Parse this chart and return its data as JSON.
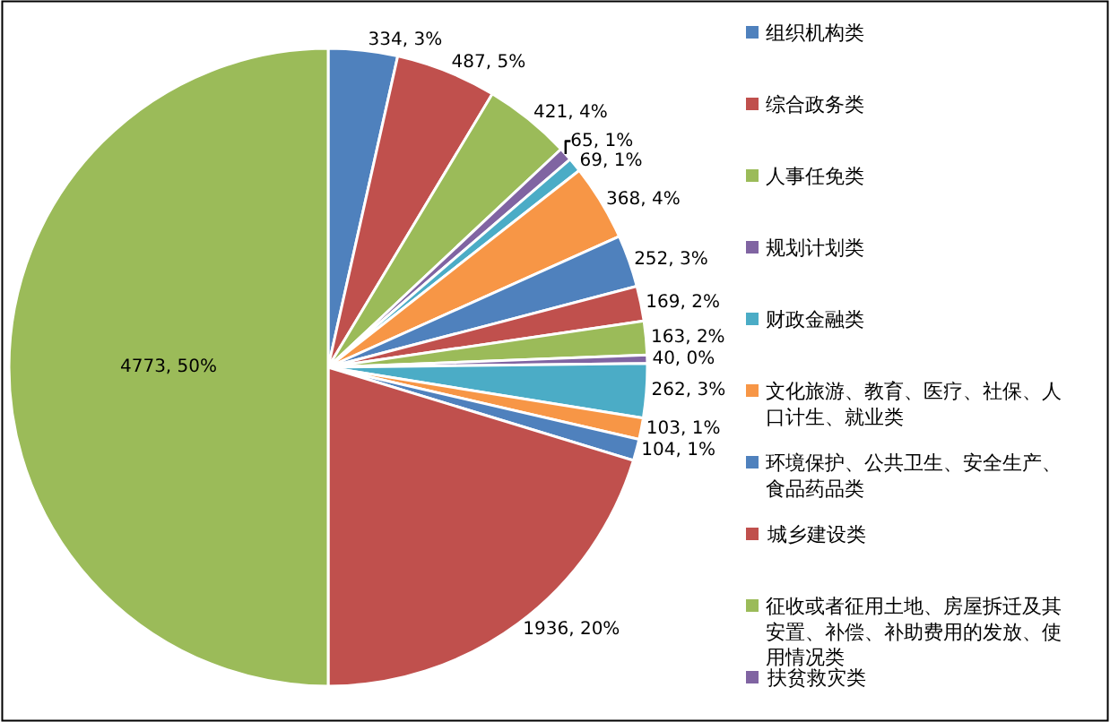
{
  "chart_data": {
    "type": "pie",
    "legend": "right",
    "categories": [
      "组织机构类",
      "综合政务类",
      "人事任免类",
      "规划计划类",
      "财政金融类",
      "文化旅游、教育、医疗、社保、人口计生、就业类",
      "环境保护、公共卫生、安全生产、食品药品类",
      "城乡建设类",
      "征收或者征用土地、房屋拆迁及其安置、补偿、补助费用的发放、使用情况类",
      "扶贫救灾类",
      null,
      null,
      null,
      null,
      null
    ],
    "values": [
      334,
      487,
      421,
      65,
      69,
      368,
      252,
      169,
      163,
      40,
      262,
      103,
      104,
      1936,
      4773
    ],
    "value_labels": [
      "334, 3%",
      "487, 5%",
      "421, 4%",
      "65, 1%",
      "69, 1%",
      "368, 4%",
      "252, 3%",
      "169, 2%",
      "163, 2%",
      "40, 0%",
      "262, 3%",
      "103, 1%",
      "104, 1%",
      "1936, 20%",
      "4773, 50%"
    ],
    "colors": [
      "#4f81bd",
      "#c0504d",
      "#9bbb59",
      "#8064a2",
      "#4bacc6",
      "#f79646",
      "#4f81bd",
      "#c0504d",
      "#9bbb59",
      "#8064a2",
      "#4bacc6",
      "#f79646",
      "#4f81bd",
      "#c0504d",
      "#9bbb59"
    ]
  }
}
